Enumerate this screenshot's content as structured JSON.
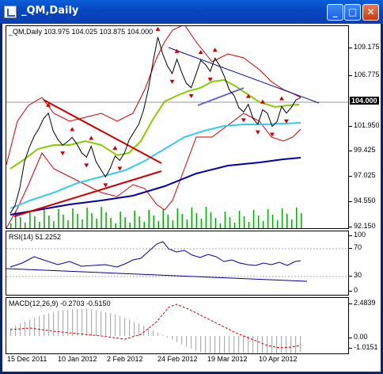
{
  "window": {
    "title": "_QM,Daily",
    "min_label": "_",
    "max_label": "□",
    "close_label": "✕"
  },
  "main_pane": {
    "legend": "_QM,Daily  103.975 104.025 103.875 104.000",
    "y_ticks": [
      "109.175",
      "106.775",
      "104.000",
      "101.950",
      "99.425",
      "97.025",
      "94.550",
      "92.150"
    ],
    "current_price": "104.000"
  },
  "rsi_pane": {
    "legend": "RSI(14) 51.2252",
    "y_ticks": [
      "100",
      "70",
      "30",
      "0"
    ]
  },
  "macd_pane": {
    "legend": "MACD(12,26,9) -0.2703 -0.5150",
    "y_ticks": [
      "2.4839",
      "0.00",
      "-1.0151"
    ]
  },
  "x_axis": {
    "labels": [
      "15 Dec 2011",
      "10 Jan 2012",
      "2 Feb 2012",
      "24 Feb 2012",
      "19 Mar 2012",
      "10 Apr 2012"
    ]
  },
  "colors": {
    "bollinger": "#cc0000",
    "ma_fast": "#88cc00",
    "ma_mid": "#33ccee",
    "ma_slow": "#0000aa",
    "trend_red": "#cc0000",
    "trend_blue": "#000099",
    "volume": "#00aa00"
  },
  "chart_data": {
    "type": "line",
    "series": [
      {
        "name": "_QM,Daily",
        "values": [
          93.5,
          94.2,
          95.8,
          98.2,
          99.5,
          100.5,
          101.2,
          102.1,
          102.6,
          101.0,
          100.2,
          99.7,
          100.0,
          100.4,
          99.8,
          99.0,
          98.6,
          99.6,
          98.2,
          97.5,
          96.8,
          97.6,
          98.7,
          98.3,
          99.0,
          100.2,
          100.9,
          101.6,
          102.9,
          104.8,
          107.3,
          109.5,
          108.0,
          106.9,
          106.2,
          107.5,
          106.3,
          105.3,
          104.9,
          106.1,
          107.4,
          107.0,
          106.4,
          107.6,
          106.9,
          105.9,
          104.7,
          104.2,
          103.1,
          102.7,
          103.4,
          102.1,
          101.6,
          102.9,
          102.6,
          101.4,
          101.8,
          103.2,
          102.6,
          103.1,
          103.8,
          104.0
        ]
      }
    ],
    "x_labels": [
      "15 Dec 2011",
      "10 Jan 2012",
      "2 Feb 2012",
      "24 Feb 2012",
      "19 Mar 2012",
      "10 Apr 2012"
    ],
    "ylim": [
      92.15,
      110.5
    ],
    "rsi": {
      "value": 51.2252,
      "levels": [
        70,
        30
      ],
      "ylim": [
        0,
        100
      ]
    },
    "macd": {
      "value": -0.2703,
      "signal": -0.515,
      "ylim": [
        -1.0151,
        2.4839
      ]
    }
  }
}
